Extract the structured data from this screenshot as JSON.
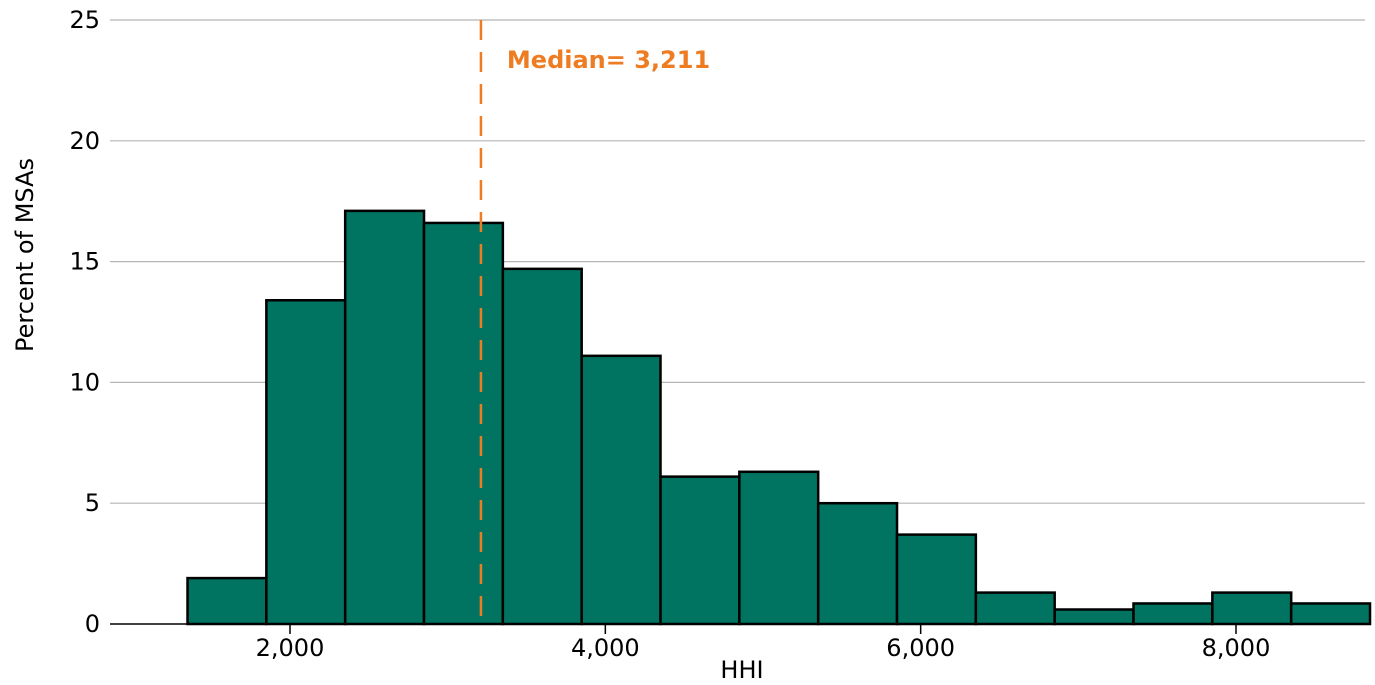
{
  "chart_data": {
    "type": "bar",
    "title": "",
    "xlabel": "HHI",
    "ylabel": "Percent of MSAs",
    "ylim": [
      0,
      25
    ],
    "xlim": [
      1150,
      8650
    ],
    "y_ticks": [
      0,
      5,
      10,
      15,
      20,
      25
    ],
    "x_ticks": [
      2000,
      4000,
      6000,
      8000
    ],
    "y_tick_labels": [
      "0",
      "5",
      "10",
      "15",
      "20",
      "25"
    ],
    "x_tick_labels": [
      "2,000",
      "4,000",
      "6,000",
      "8,000"
    ],
    "grid": "horizontal",
    "bins": [
      {
        "start": 1350,
        "end": 1850,
        "value": 1.9
      },
      {
        "start": 1850,
        "end": 2350,
        "value": 13.4
      },
      {
        "start": 2350,
        "end": 2850,
        "value": 17.1
      },
      {
        "start": 2850,
        "end": 3350,
        "value": 16.6
      },
      {
        "start": 3350,
        "end": 3850,
        "value": 14.7
      },
      {
        "start": 3850,
        "end": 4350,
        "value": 11.1
      },
      {
        "start": 4350,
        "end": 4850,
        "value": 6.1
      },
      {
        "start": 4850,
        "end": 5350,
        "value": 6.3
      },
      {
        "start": 5350,
        "end": 5850,
        "value": 5.0
      },
      {
        "start": 5850,
        "end": 6350,
        "value": 3.7
      },
      {
        "start": 6350,
        "end": 6850,
        "value": 1.3
      },
      {
        "start": 6850,
        "end": 7350,
        "value": 0.6
      },
      {
        "start": 7350,
        "end": 7850,
        "value": 0.85
      },
      {
        "start": 7850,
        "end": 8350,
        "value": 1.3
      },
      {
        "start": 8350,
        "end": 8850,
        "value": 0.85
      }
    ],
    "median": {
      "value": 3211,
      "label": "Median= 3,211"
    },
    "colors": {
      "bar": "#007461",
      "bar_stroke": "#000000",
      "median": "#EE7C22",
      "grid": "#B5B5B5"
    }
  }
}
